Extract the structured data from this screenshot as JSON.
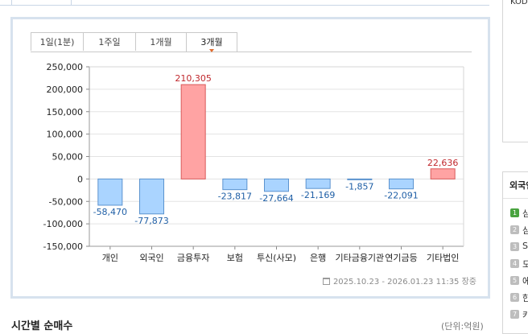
{
  "period_tabs": [
    {
      "label": "1일(1분)"
    },
    {
      "label": "1주일"
    },
    {
      "label": "1개월"
    },
    {
      "label": "3개월",
      "active": true
    }
  ],
  "chart_data": {
    "type": "bar",
    "categories": [
      "개인",
      "외국인",
      "금융투자",
      "보험",
      "투신(사모)",
      "은행",
      "기타금융기관",
      "연기금등",
      "기타법인"
    ],
    "values": [
      -58470,
      -77873,
      210305,
      -23817,
      -27664,
      -21169,
      -1857,
      -22091,
      22636
    ],
    "value_labels": [
      "-58,470",
      "-77,873",
      "210,305",
      "-23,817",
      "-27,664",
      "-21,169",
      "-1,857",
      "-22,091",
      "22,636"
    ],
    "ylim": [
      -150000,
      250000
    ],
    "y_ticks": [
      250000,
      200000,
      150000,
      100000,
      50000,
      0,
      -50000,
      -100000,
      -150000
    ],
    "y_tick_labels": [
      "250,000",
      "200,000",
      "150,000",
      "100,000",
      "50,000",
      "0",
      "-50,000",
      "-100,000",
      "-150,000"
    ],
    "grid": true,
    "colors": {
      "positive_fill": "#ffa3a3",
      "positive_stroke": "#d95b5b",
      "positive_text": "#c0282d",
      "negative_fill": "#aad4ff",
      "negative_stroke": "#5b93cf",
      "negative_text": "#1f5fa6"
    }
  },
  "date_range": "2025.10.23 - 2026.01.23 11:35 장중",
  "section": {
    "title": "시간별 순매수",
    "unit": "(단위:억원)"
  },
  "right_panel": {
    "top_text": "KOD",
    "box_title": "외국인",
    "items": [
      {
        "rank": "1",
        "text": "삼"
      },
      {
        "rank": "2",
        "text": "삼"
      },
      {
        "rank": "3",
        "text": "S"
      },
      {
        "rank": "4",
        "text": "도"
      },
      {
        "rank": "5",
        "text": "에"
      },
      {
        "rank": "6",
        "text": "한"
      },
      {
        "rank": "7",
        "text": "카"
      }
    ]
  }
}
